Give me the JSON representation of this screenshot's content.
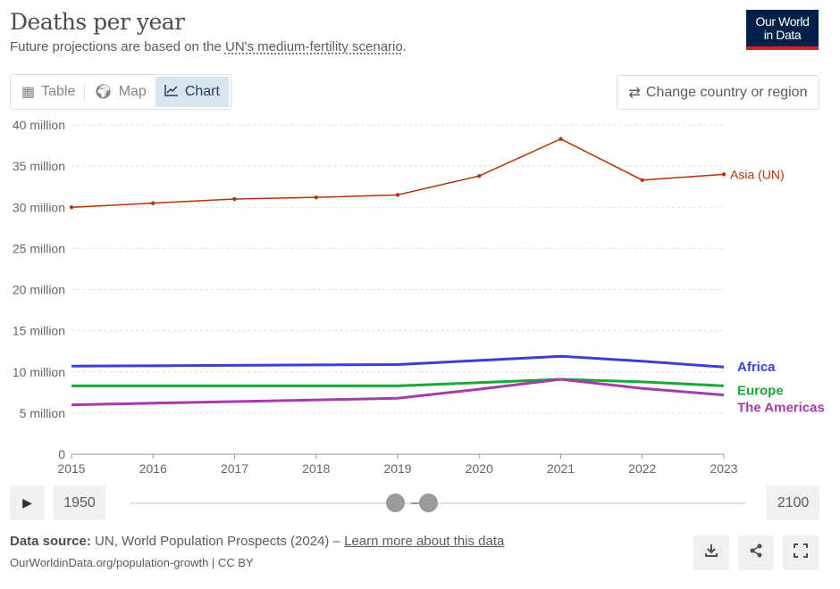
{
  "header": {
    "title": "Deaths per year",
    "subtitle_prefix": "Future projections are based on the ",
    "subtitle_link": "UN's medium-fertility scenario",
    "subtitle_suffix": ".",
    "logo": "Our World in Data"
  },
  "tabs": [
    {
      "label": "Table",
      "icon": "table-icon"
    },
    {
      "label": "Map",
      "icon": "globe-icon"
    },
    {
      "label": "Chart",
      "icon": "line-chart-icon",
      "active": true
    }
  ],
  "change_country": {
    "label": "Change country or region",
    "icon": "swap-icon"
  },
  "timeline": {
    "play_icon": "play-icon",
    "start": "1950",
    "end": "2100",
    "selected": [
      2015,
      2023
    ]
  },
  "footer": {
    "source_label": "Data source:",
    "source": "UN, World Population Prospects (2024) – ",
    "learn_more": "Learn more about this data",
    "url": "OurWorldinData.org/population-growth | CC BY"
  },
  "actions": [
    {
      "icon": "download-icon"
    },
    {
      "icon": "share-icon"
    },
    {
      "icon": "fullscreen-icon"
    }
  ],
  "chart_data": {
    "type": "line",
    "title": "Deaths per year",
    "x": [
      2015,
      2016,
      2017,
      2018,
      2019,
      2020,
      2021,
      2022,
      2023
    ],
    "xlim": [
      2015,
      2023
    ],
    "ylim": [
      0,
      40000000
    ],
    "y_ticks": [
      0,
      5000000,
      10000000,
      15000000,
      20000000,
      25000000,
      30000000,
      35000000,
      40000000
    ],
    "y_tick_labels": [
      "0",
      "5 million",
      "10 million",
      "15 million",
      "20 million",
      "25 million",
      "30 million",
      "35 million",
      "40 million"
    ],
    "x_tick_labels": [
      "2015",
      "2016",
      "2017",
      "2018",
      "2019",
      "2020",
      "2021",
      "2022",
      "2023"
    ],
    "grid": "horizontal dotted",
    "legend": "right, inline labels",
    "series": [
      {
        "name": "Asia (UN)",
        "color": "#b13507",
        "markers": true,
        "values": [
          30000000,
          30500000,
          31000000,
          31200000,
          31500000,
          33800000,
          38300000,
          33300000,
          34000000
        ]
      },
      {
        "name": "Africa",
        "color": "#3c3fd0",
        "values": [
          10700000,
          10750000,
          10800000,
          10850000,
          10900000,
          11400000,
          11900000,
          11300000,
          10600000
        ]
      },
      {
        "name": "Europe",
        "color": "#18a83a",
        "values": [
          8300000,
          8300000,
          8300000,
          8300000,
          8300000,
          8700000,
          9100000,
          8800000,
          8300000
        ]
      },
      {
        "name": "The Americas",
        "color": "#a23ea6",
        "values": [
          6000000,
          6200000,
          6400000,
          6600000,
          6800000,
          7900000,
          9100000,
          8000000,
          7200000
        ]
      }
    ]
  }
}
